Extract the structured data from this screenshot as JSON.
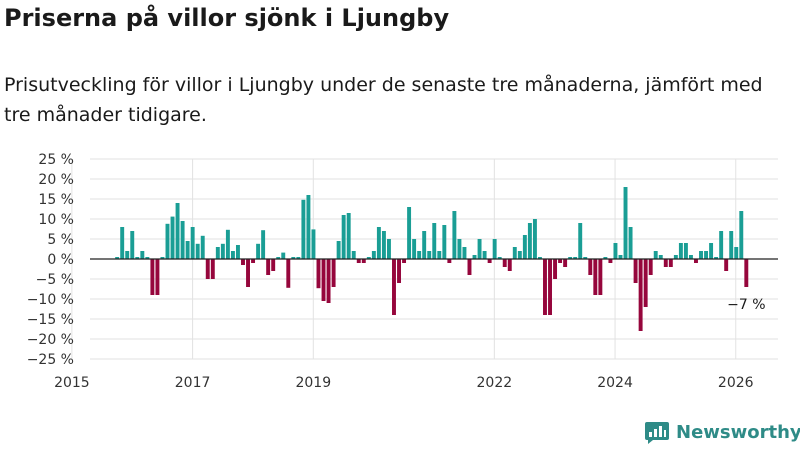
{
  "header": {
    "title": "Priserna på villor sjönk i Ljungby",
    "subtitle": "Prisutveckling för villor i Ljungby under de senaste tre månaderna, jämfört med tre månader tidigare."
  },
  "brand": {
    "name": "Newsworthy"
  },
  "colors": {
    "positive": "#1a9e95",
    "negative": "#96063c",
    "grid": "#e2e2e2",
    "zero_line": "#222222",
    "brand": "#2e8b87"
  },
  "chart_data": {
    "type": "bar",
    "title": "Priserna på villor sjönk i Ljungby",
    "xlabel": "",
    "ylabel": "",
    "ylim": [
      -25,
      25
    ],
    "y_ticks": [
      25,
      20,
      15,
      10,
      5,
      0,
      -5,
      -10,
      -15,
      -20,
      -25
    ],
    "y_tick_labels": [
      "25 %",
      "20 %",
      "15 %",
      "10 %",
      "5 %",
      "0 %",
      "−5 %",
      "−10 %",
      "−15 %",
      "−20 %",
      "−25 %"
    ],
    "x_ticks": [
      2015,
      2017,
      2019,
      2022,
      2024,
      2026
    ],
    "x_tick_labels": [
      "2015",
      "2017",
      "2019",
      "2022",
      "2024",
      "2026"
    ],
    "x_range": [
      2015.3,
      2026.7
    ],
    "start": 2015.75,
    "step": 0.0834,
    "unit": "%",
    "values": [
      0.5,
      8,
      2,
      7,
      0.5,
      2,
      0.5,
      -9,
      -9,
      0.5,
      8.8,
      10.6,
      14,
      9.5,
      4.5,
      8,
      3.8,
      5.8,
      -5,
      -5,
      3,
      3.8,
      7.3,
      2,
      3.5,
      -1.5,
      -7,
      -1,
      3.8,
      7.2,
      -4,
      -3,
      0.5,
      1.6,
      -7.2,
      0.5,
      0.5,
      14.8,
      16,
      7.4,
      -7.3,
      -10.5,
      -11,
      -7,
      4.5,
      11,
      11.5,
      2,
      -1,
      -1,
      0.5,
      2,
      8,
      7,
      5,
      -14,
      -6,
      -1,
      13,
      5,
      2,
      7,
      2,
      9,
      2,
      8.5,
      -1,
      12,
      5,
      3,
      -4,
      1,
      5,
      2,
      -1,
      5,
      0.5,
      -2,
      -3,
      3,
      2,
      6,
      9,
      10,
      0.5,
      -14,
      -14,
      -5,
      -1,
      -2,
      0.5,
      0.5,
      9,
      0.5,
      -4,
      -9,
      -9,
      0.5,
      -1,
      4,
      1,
      18,
      8,
      -6,
      -18,
      -12,
      -4,
      2,
      1,
      -2,
      -2,
      1,
      4,
      4,
      1,
      -1,
      2,
      2,
      4,
      0.5,
      7,
      -3,
      7,
      3,
      12,
      -7
    ],
    "annotations": [
      {
        "text": "−7 %",
        "ref": "last"
      }
    ]
  }
}
